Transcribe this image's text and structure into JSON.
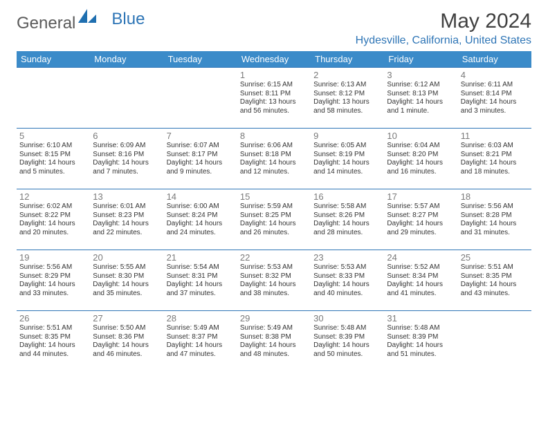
{
  "brand": {
    "part1": "General",
    "part2": "Blue"
  },
  "title": "May 2024",
  "location": "Hydesville, California, United States",
  "colors": {
    "header_bg": "#3b8bc9",
    "header_fg": "#ffffff",
    "rule": "#2e75b6",
    "accent": "#2e75b6",
    "text": "#333333",
    "muted": "#7a7a7a",
    "brand_gray": "#5a5a5a"
  },
  "weekdays": [
    "Sunday",
    "Monday",
    "Tuesday",
    "Wednesday",
    "Thursday",
    "Friday",
    "Saturday"
  ],
  "weeks": [
    [
      null,
      null,
      null,
      {
        "n": "1",
        "sr": "6:15 AM",
        "ss": "8:11 PM",
        "dl": "13 hours and 56 minutes."
      },
      {
        "n": "2",
        "sr": "6:13 AM",
        "ss": "8:12 PM",
        "dl": "13 hours and 58 minutes."
      },
      {
        "n": "3",
        "sr": "6:12 AM",
        "ss": "8:13 PM",
        "dl": "14 hours and 1 minute."
      },
      {
        "n": "4",
        "sr": "6:11 AM",
        "ss": "8:14 PM",
        "dl": "14 hours and 3 minutes."
      }
    ],
    [
      {
        "n": "5",
        "sr": "6:10 AM",
        "ss": "8:15 PM",
        "dl": "14 hours and 5 minutes."
      },
      {
        "n": "6",
        "sr": "6:09 AM",
        "ss": "8:16 PM",
        "dl": "14 hours and 7 minutes."
      },
      {
        "n": "7",
        "sr": "6:07 AM",
        "ss": "8:17 PM",
        "dl": "14 hours and 9 minutes."
      },
      {
        "n": "8",
        "sr": "6:06 AM",
        "ss": "8:18 PM",
        "dl": "14 hours and 12 minutes."
      },
      {
        "n": "9",
        "sr": "6:05 AM",
        "ss": "8:19 PM",
        "dl": "14 hours and 14 minutes."
      },
      {
        "n": "10",
        "sr": "6:04 AM",
        "ss": "8:20 PM",
        "dl": "14 hours and 16 minutes."
      },
      {
        "n": "11",
        "sr": "6:03 AM",
        "ss": "8:21 PM",
        "dl": "14 hours and 18 minutes."
      }
    ],
    [
      {
        "n": "12",
        "sr": "6:02 AM",
        "ss": "8:22 PM",
        "dl": "14 hours and 20 minutes."
      },
      {
        "n": "13",
        "sr": "6:01 AM",
        "ss": "8:23 PM",
        "dl": "14 hours and 22 minutes."
      },
      {
        "n": "14",
        "sr": "6:00 AM",
        "ss": "8:24 PM",
        "dl": "14 hours and 24 minutes."
      },
      {
        "n": "15",
        "sr": "5:59 AM",
        "ss": "8:25 PM",
        "dl": "14 hours and 26 minutes."
      },
      {
        "n": "16",
        "sr": "5:58 AM",
        "ss": "8:26 PM",
        "dl": "14 hours and 28 minutes."
      },
      {
        "n": "17",
        "sr": "5:57 AM",
        "ss": "8:27 PM",
        "dl": "14 hours and 29 minutes."
      },
      {
        "n": "18",
        "sr": "5:56 AM",
        "ss": "8:28 PM",
        "dl": "14 hours and 31 minutes."
      }
    ],
    [
      {
        "n": "19",
        "sr": "5:56 AM",
        "ss": "8:29 PM",
        "dl": "14 hours and 33 minutes."
      },
      {
        "n": "20",
        "sr": "5:55 AM",
        "ss": "8:30 PM",
        "dl": "14 hours and 35 minutes."
      },
      {
        "n": "21",
        "sr": "5:54 AM",
        "ss": "8:31 PM",
        "dl": "14 hours and 37 minutes."
      },
      {
        "n": "22",
        "sr": "5:53 AM",
        "ss": "8:32 PM",
        "dl": "14 hours and 38 minutes."
      },
      {
        "n": "23",
        "sr": "5:53 AM",
        "ss": "8:33 PM",
        "dl": "14 hours and 40 minutes."
      },
      {
        "n": "24",
        "sr": "5:52 AM",
        "ss": "8:34 PM",
        "dl": "14 hours and 41 minutes."
      },
      {
        "n": "25",
        "sr": "5:51 AM",
        "ss": "8:35 PM",
        "dl": "14 hours and 43 minutes."
      }
    ],
    [
      {
        "n": "26",
        "sr": "5:51 AM",
        "ss": "8:35 PM",
        "dl": "14 hours and 44 minutes."
      },
      {
        "n": "27",
        "sr": "5:50 AM",
        "ss": "8:36 PM",
        "dl": "14 hours and 46 minutes."
      },
      {
        "n": "28",
        "sr": "5:49 AM",
        "ss": "8:37 PM",
        "dl": "14 hours and 47 minutes."
      },
      {
        "n": "29",
        "sr": "5:49 AM",
        "ss": "8:38 PM",
        "dl": "14 hours and 48 minutes."
      },
      {
        "n": "30",
        "sr": "5:48 AM",
        "ss": "8:39 PM",
        "dl": "14 hours and 50 minutes."
      },
      {
        "n": "31",
        "sr": "5:48 AM",
        "ss": "8:39 PM",
        "dl": "14 hours and 51 minutes."
      },
      null
    ]
  ],
  "labels": {
    "sunrise": "Sunrise:",
    "sunset": "Sunset:",
    "daylight": "Daylight:"
  }
}
